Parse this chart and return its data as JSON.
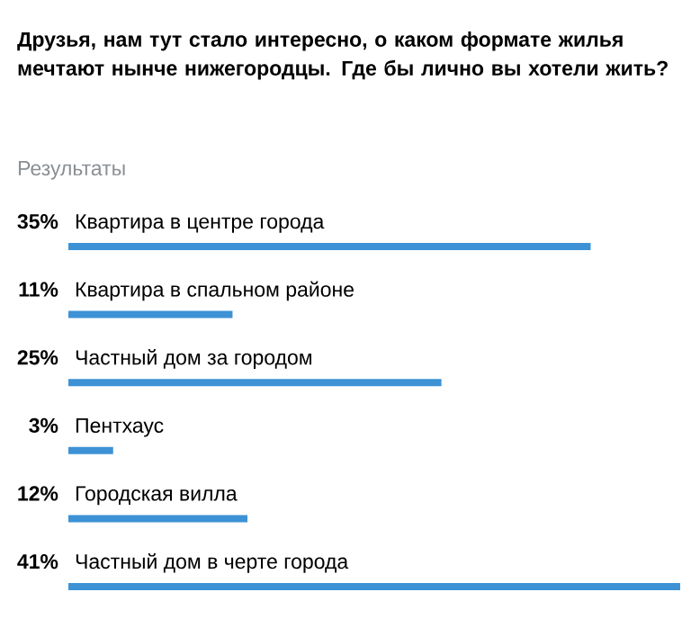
{
  "chart_data": {
    "type": "bar",
    "orientation": "horizontal",
    "title": "Друзья, нам тут стало интересно, о каком формате жилья мечтают нынче нижегородцы. Где бы лично вы хотели жить?",
    "subtitle": "Результаты",
    "categories": [
      "Квартира в центре города",
      "Квартира в спальном районе",
      "Частный дом за городом",
      "Пентхаус",
      "Городская вилла",
      "Частный дом в черте города"
    ],
    "values": [
      35,
      11,
      25,
      3,
      12,
      41
    ],
    "value_labels": [
      "35%",
      "11%",
      "25%",
      "3%",
      "12%",
      "41%"
    ],
    "color": "#3d92d5"
  }
}
